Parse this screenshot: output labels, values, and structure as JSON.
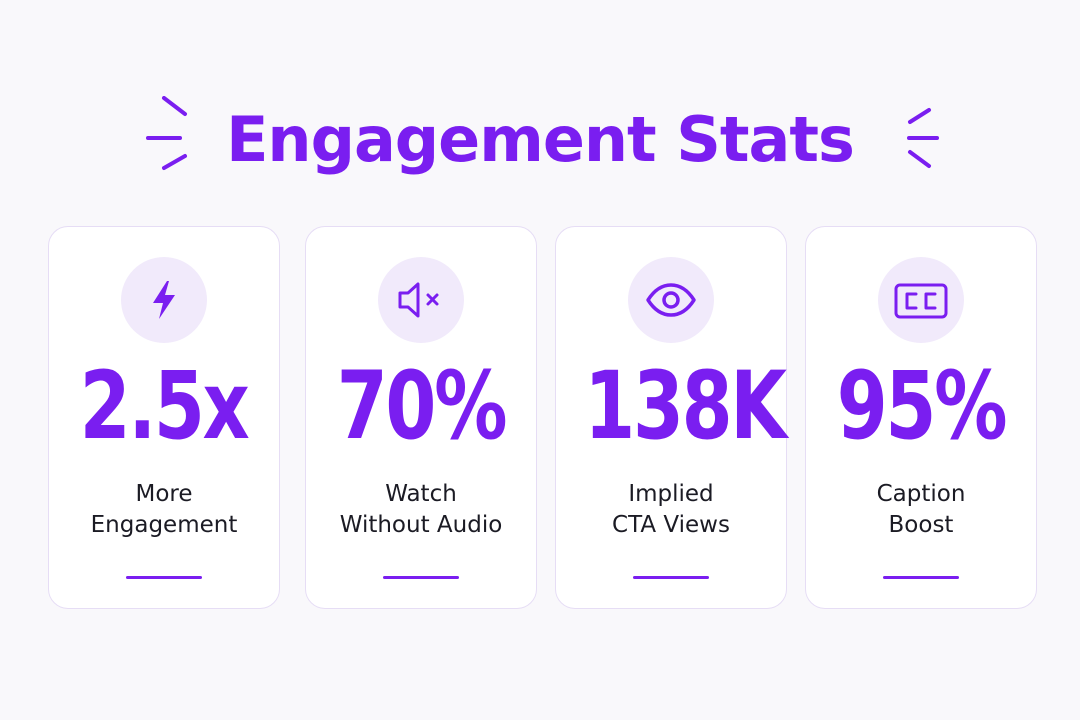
{
  "header": {
    "title": "Engagement Stats"
  },
  "colors": {
    "accent": "#7A1EF0",
    "icon_bg": "#F1EAFB",
    "card_border": "#E6DDF5",
    "text": "#1B1B24",
    "background": "#F9F8FB"
  },
  "stats": [
    {
      "icon": "lightning-bolt-icon",
      "value": "2.5x",
      "label_line1": "More",
      "label_line2": "Engagement"
    },
    {
      "icon": "speaker-muted-icon",
      "value": "70%",
      "label_line1": "Watch",
      "label_line2": "Without Audio"
    },
    {
      "icon": "eye-icon",
      "value": "138K",
      "label_line1": "Implied",
      "label_line2": "CTA Views"
    },
    {
      "icon": "closed-captions-icon",
      "value": "95%",
      "label_line1": "Caption",
      "label_line2": "Boost"
    }
  ]
}
